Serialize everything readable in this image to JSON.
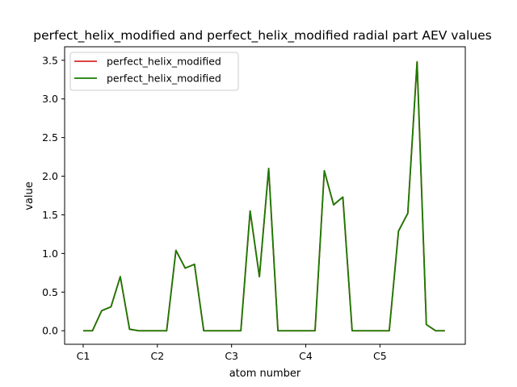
{
  "chart_data": {
    "type": "line",
    "title": "perfect_helix_modified and perfect_helix_modified radial part AEV values",
    "xlabel": "atom number",
    "ylabel": "value",
    "xlim": [
      -0.25,
      5.15
    ],
    "ylim": [
      -0.175,
      3.675
    ],
    "x_ticks": [
      {
        "value": 0,
        "label": "C1"
      },
      {
        "value": 1,
        "label": "C2"
      },
      {
        "value": 2,
        "label": "C3"
      },
      {
        "value": 3,
        "label": "C4"
      },
      {
        "value": 4,
        "label": "C5"
      }
    ],
    "y_ticks": [
      {
        "value": 0.0,
        "label": "0.0"
      },
      {
        "value": 0.5,
        "label": "0.5"
      },
      {
        "value": 1.0,
        "label": "1.0"
      },
      {
        "value": 1.5,
        "label": "1.5"
      },
      {
        "value": 2.0,
        "label": "2.0"
      },
      {
        "value": 2.5,
        "label": "2.5"
      },
      {
        "value": 3.0,
        "label": "3.0"
      },
      {
        "value": 3.5,
        "label": "3.5"
      }
    ],
    "legend_position": "top-left",
    "grid": false,
    "x": [
      0,
      0.125,
      0.25,
      0.375,
      0.5,
      0.625,
      0.75,
      0.875,
      1.0,
      1.125,
      1.25,
      1.375,
      1.5,
      1.625,
      1.75,
      1.875,
      2.0,
      2.125,
      2.25,
      2.375,
      2.5,
      2.625,
      2.75,
      2.875,
      3.0,
      3.125,
      3.25,
      3.375,
      3.5,
      3.625,
      3.75,
      3.875,
      4.0,
      4.125,
      4.25,
      4.375,
      4.5,
      4.625,
      4.75,
      4.875
    ],
    "series": [
      {
        "name": "perfect_helix_modified",
        "color": "#d62728",
        "values": [
          0.0,
          0.0,
          0.26,
          0.31,
          0.7,
          0.02,
          0.0,
          0.0,
          0.0,
          0.0,
          1.04,
          0.81,
          0.86,
          0.0,
          0.0,
          0.0,
          0.0,
          0.0,
          1.55,
          0.7,
          2.1,
          0.0,
          0.0,
          0.0,
          0.0,
          0.0,
          2.07,
          1.63,
          1.73,
          0.0,
          0.0,
          0.0,
          0.0,
          0.0,
          1.29,
          1.52,
          3.48,
          0.08,
          0.0,
          0.0
        ]
      },
      {
        "name": "perfect_helix_modified",
        "color": "#1a7a00",
        "values": [
          0.0,
          0.0,
          0.26,
          0.31,
          0.7,
          0.02,
          0.0,
          0.0,
          0.0,
          0.0,
          1.04,
          0.81,
          0.86,
          0.0,
          0.0,
          0.0,
          0.0,
          0.0,
          1.55,
          0.7,
          2.1,
          0.0,
          0.0,
          0.0,
          0.0,
          0.0,
          2.07,
          1.63,
          1.73,
          0.0,
          0.0,
          0.0,
          0.0,
          0.0,
          1.29,
          1.52,
          3.48,
          0.08,
          0.0,
          0.0
        ]
      }
    ]
  }
}
